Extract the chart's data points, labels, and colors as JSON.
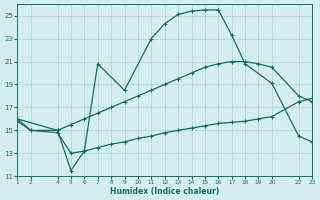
{
  "xlabel": "Humidex (Indice chaleur)",
  "bg_color": "#d4eeeb",
  "grid_color": "#b2d8d4",
  "line_color": "#1a6b5e",
  "xlim": [
    1,
    23
  ],
  "ylim": [
    11,
    26
  ],
  "xticks": [
    1,
    2,
    4,
    5,
    6,
    7,
    8,
    9,
    10,
    11,
    12,
    13,
    14,
    15,
    16,
    17,
    18,
    19,
    20,
    22,
    23
  ],
  "yticks": [
    11,
    13,
    15,
    17,
    19,
    21,
    23,
    25
  ],
  "line1_x": [
    1,
    4,
    5,
    6,
    7,
    9,
    11,
    12,
    13,
    14,
    15,
    16,
    17,
    18,
    20,
    22,
    23
  ],
  "line1_y": [
    16.0,
    15.0,
    11.5,
    13.2,
    20.8,
    18.5,
    23.0,
    24.3,
    25.1,
    25.4,
    25.5,
    25.5,
    23.3,
    20.8,
    19.1,
    14.5,
    14.0
  ],
  "line2_x": [
    1,
    2,
    4,
    5,
    6,
    7,
    8,
    9,
    10,
    11,
    12,
    13,
    14,
    15,
    16,
    17,
    18,
    19,
    20,
    22,
    23
  ],
  "line2_y": [
    16.0,
    15.0,
    15.0,
    15.5,
    16.0,
    16.5,
    17.0,
    17.5,
    18.0,
    18.5,
    19.0,
    19.5,
    20.0,
    20.5,
    20.8,
    21.0,
    21.0,
    20.8,
    20.5,
    18.0,
    17.5
  ],
  "line3_x": [
    1,
    2,
    4,
    5,
    6,
    7,
    8,
    9,
    10,
    11,
    12,
    13,
    14,
    15,
    16,
    17,
    18,
    19,
    20,
    22,
    23
  ],
  "line3_y": [
    15.8,
    15.0,
    14.8,
    13.0,
    13.2,
    13.5,
    13.8,
    14.0,
    14.3,
    14.5,
    14.8,
    15.0,
    15.2,
    15.4,
    15.6,
    15.7,
    15.8,
    16.0,
    16.2,
    17.5,
    17.8
  ]
}
